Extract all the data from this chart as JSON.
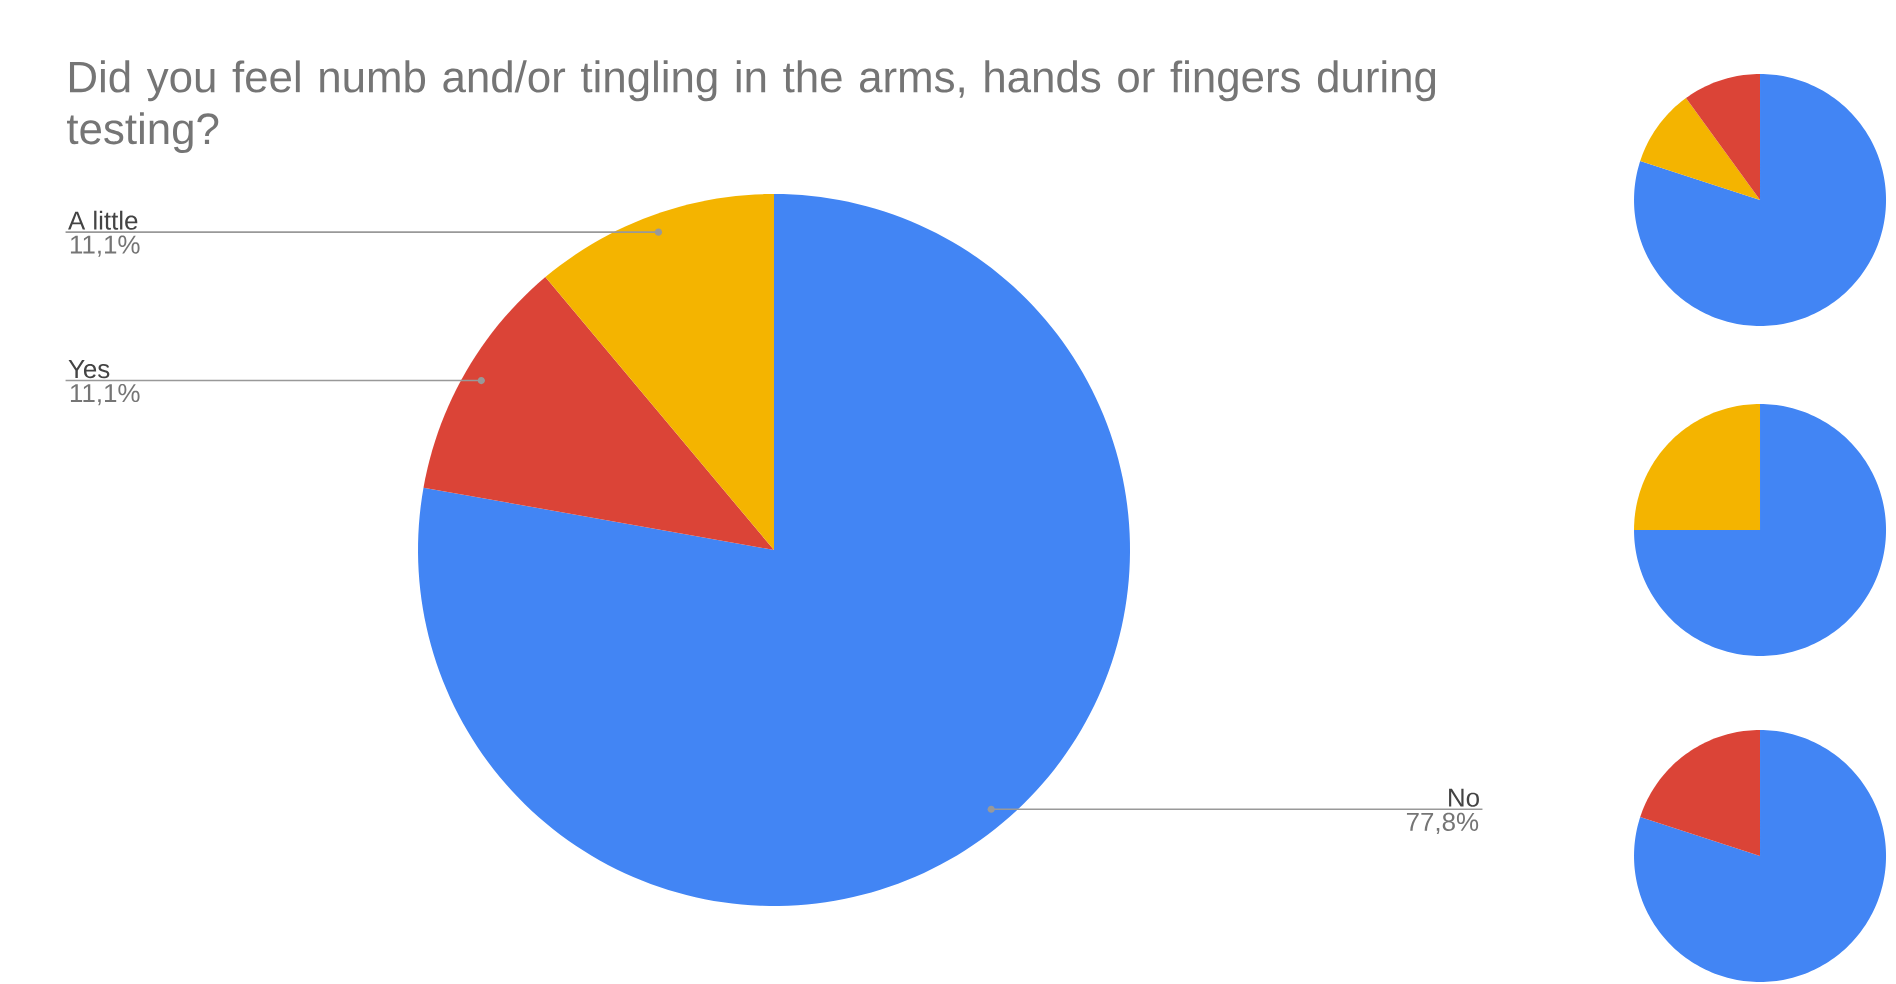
{
  "chart_data": [
    {
      "type": "pie",
      "title": "Did you feel numb and/or tingling in the arms, hands or fingers during testing?",
      "categories": [
        "No",
        "Yes",
        "A little"
      ],
      "values": [
        77.8,
        11.1,
        11.1
      ],
      "colors": [
        "#4285f4",
        "#db4437",
        "#f4b400"
      ],
      "value_labels": [
        "77,8%",
        "11,1%",
        "11,1%"
      ]
    },
    {
      "type": "pie",
      "categories": [
        null,
        null,
        null
      ],
      "values": [
        80,
        10,
        10
      ],
      "colors": [
        "#4285f4",
        "#f4b400",
        "#db4437"
      ]
    },
    {
      "type": "pie",
      "categories": [
        null,
        null
      ],
      "values": [
        75,
        25
      ],
      "colors": [
        "#4285f4",
        "#f4b400"
      ]
    },
    {
      "type": "pie",
      "categories": [
        null,
        null
      ],
      "values": [
        80,
        20
      ],
      "colors": [
        "#4285f4",
        "#db4437"
      ]
    }
  ]
}
